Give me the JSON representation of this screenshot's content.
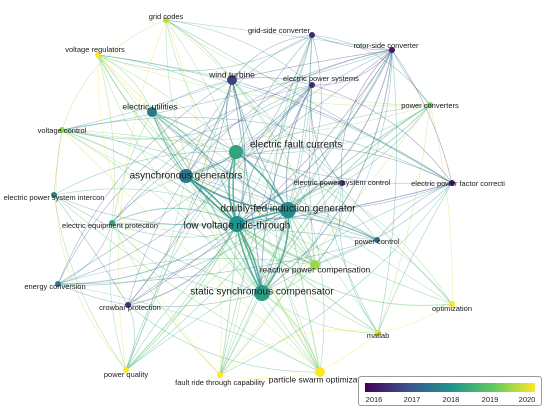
{
  "nodes": [
    {
      "id": "grid_codes",
      "label": "grid codes",
      "year": 2019.6,
      "weight": 2,
      "size": "small"
    },
    {
      "id": "grid_side_converter",
      "label": "grid-side converter",
      "year": 2016.5,
      "weight": 2,
      "size": "small"
    },
    {
      "id": "rotor_side_converter",
      "label": "rotor-side converter",
      "year": 2016.3,
      "weight": 3,
      "size": "small"
    },
    {
      "id": "voltage_regulators",
      "label": "voltage regulators",
      "year": 2020.0,
      "weight": 2,
      "size": "small"
    },
    {
      "id": "wind_turbine",
      "label": "wind turbine",
      "year": 2016.8,
      "weight": 4,
      "size": "medium"
    },
    {
      "id": "electric_power_systems",
      "label": "electric power systems",
      "year": 2016.5,
      "weight": 3,
      "size": "small"
    },
    {
      "id": "electric_utilities",
      "label": "electric utilities",
      "year": 2017.6,
      "weight": 4,
      "size": "medium"
    },
    {
      "id": "power_converters",
      "label": "power converters",
      "year": 2019.2,
      "weight": 3,
      "size": "small"
    },
    {
      "id": "voltage_control",
      "label": "voltage control",
      "year": 2019.3,
      "weight": 2,
      "size": "small"
    },
    {
      "id": "electric_fault_currents",
      "label": "electric fault currents",
      "year": 2018.3,
      "weight": 6,
      "size": "large"
    },
    {
      "id": "asynchronous_generators",
      "label": "asynchronous generators",
      "year": 2017.6,
      "weight": 6,
      "size": "large"
    },
    {
      "id": "electric_power_system_control",
      "label": "electric power system control",
      "year": 2016.6,
      "weight": 2,
      "size": "small"
    },
    {
      "id": "electric_power_factor",
      "label": "electric power factor correcti",
      "year": 2016.3,
      "weight": 2,
      "size": "small"
    },
    {
      "id": "electric_power_system_intercon",
      "label": "electric power system intercon",
      "year": 2017.6,
      "weight": 2,
      "size": "small"
    },
    {
      "id": "doubly_fed",
      "label": "doubly-fed induction generator",
      "year": 2017.9,
      "weight": 7,
      "size": "large"
    },
    {
      "id": "electric_equipment_protection",
      "label": "electric equipment protection",
      "year": 2018.3,
      "weight": 2,
      "size": "small"
    },
    {
      "id": "lvrt",
      "label": "low voltage ride-through",
      "year": 2018.0,
      "weight": 8,
      "size": "large"
    },
    {
      "id": "power_control",
      "label": "power control",
      "year": 2017.4,
      "weight": 2,
      "size": "small"
    },
    {
      "id": "energy_conversion",
      "label": "energy conversion",
      "year": 2017.6,
      "weight": 2,
      "size": "small"
    },
    {
      "id": "reactive_power_compensation",
      "label": "reactive power compensation",
      "year": 2019.4,
      "weight": 4,
      "size": "medium"
    },
    {
      "id": "crowbar_protection",
      "label": "crowbar protection",
      "year": 2016.6,
      "weight": 2,
      "size": "small"
    },
    {
      "id": "statcom",
      "label": "static synchronous compensator",
      "year": 2018.2,
      "weight": 7,
      "size": "large"
    },
    {
      "id": "optimization",
      "label": "optimization",
      "year": 2020.0,
      "weight": 2,
      "size": "small"
    },
    {
      "id": "matlab",
      "label": "matlab",
      "year": 2019.8,
      "weight": 2,
      "size": "small"
    },
    {
      "id": "power_quality",
      "label": "power quality",
      "year": 2020.0,
      "weight": 2,
      "size": "small"
    },
    {
      "id": "fault_ride_through",
      "label": "fault ride through capability",
      "year": 2020.0,
      "weight": 2,
      "size": "small"
    },
    {
      "id": "pso",
      "label": "particle swarm optimization",
      "year": 2020.0,
      "weight": 3,
      "size": "medium"
    }
  ],
  "legend": {
    "title": "",
    "ticks": [
      "2016",
      "2017",
      "2018",
      "2019",
      "2020"
    ],
    "colors": [
      "#440154",
      "#3b528b",
      "#21918c",
      "#5ec962",
      "#fde725"
    ]
  }
}
